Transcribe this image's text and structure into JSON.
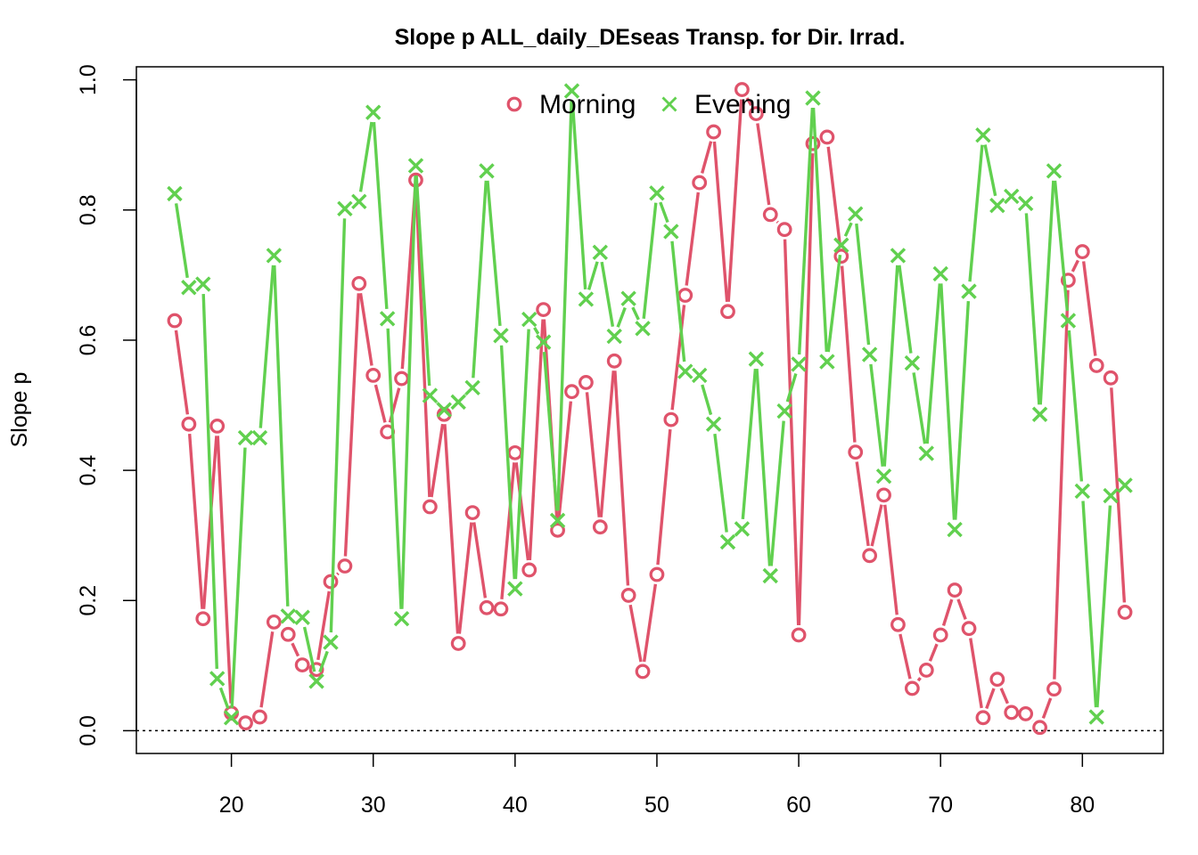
{
  "chart_data": {
    "type": "line",
    "title": "Slope p ALL_daily_DEseas Transp. for Dir. Irrad.",
    "xlabel": "",
    "ylabel": "Slope p",
    "xlim": [
      13.3,
      85.7
    ],
    "ylim": [
      -0.035,
      1.02
    ],
    "xticks": [
      "20",
      "30",
      "40",
      "50",
      "60",
      "70",
      "80"
    ],
    "yticks": [
      "0.0",
      "0.2",
      "0.4",
      "0.6",
      "0.8",
      "1.0"
    ],
    "reference_line": 0,
    "legend_position": "top-center",
    "grid": false,
    "x": [
      16,
      17,
      18,
      19,
      20,
      21,
      22,
      23,
      24,
      25,
      26,
      27,
      28,
      29,
      30,
      31,
      32,
      33,
      34,
      35,
      36,
      37,
      38,
      39,
      40,
      41,
      42,
      43,
      44,
      45,
      46,
      47,
      48,
      49,
      50,
      51,
      52,
      53,
      54,
      55,
      56,
      57,
      58,
      59,
      60,
      61,
      62,
      63,
      64,
      65,
      66,
      67,
      68,
      69,
      70,
      71,
      72,
      73,
      74,
      75,
      76,
      77,
      78,
      79,
      80,
      81,
      82,
      83
    ],
    "series": [
      {
        "name": "Morning",
        "marker": "circle",
        "color": "#DF536B",
        "values": [
          0.63,
          0.471,
          0.172,
          0.468,
          0.027,
          0.012,
          0.021,
          0.167,
          0.148,
          0.101,
          0.094,
          0.229,
          0.253,
          0.687,
          0.546,
          0.459,
          0.541,
          0.846,
          0.344,
          0.486,
          0.134,
          0.335,
          0.189,
          0.187,
          0.427,
          0.247,
          0.647,
          0.308,
          0.521,
          0.535,
          0.313,
          0.568,
          0.208,
          0.091,
          0.24,
          0.478,
          0.669,
          0.842,
          0.92,
          0.644,
          0.985,
          0.948,
          0.793,
          0.77,
          0.147,
          0.902,
          0.912,
          0.729,
          0.428,
          0.269,
          0.362,
          0.163,
          0.065,
          0.093,
          0.147,
          0.216,
          0.157,
          0.02,
          0.079,
          0.028,
          0.026,
          0.005,
          0.064,
          0.692,
          0.736,
          0.561,
          0.542,
          0.182
        ]
      },
      {
        "name": "Evening",
        "marker": "x",
        "color": "#61D04F",
        "values": [
          0.825,
          0.681,
          0.686,
          0.08,
          0.02,
          0.45,
          0.45,
          0.73,
          0.176,
          0.174,
          0.076,
          0.136,
          0.802,
          0.813,
          0.95,
          0.633,
          0.172,
          0.868,
          0.515,
          0.493,
          0.505,
          0.527,
          0.86,
          0.607,
          0.218,
          0.632,
          0.597,
          0.323,
          0.983,
          0.663,
          0.735,
          0.606,
          0.664,
          0.618,
          0.826,
          0.767,
          0.552,
          0.546,
          0.471,
          0.29,
          0.31,
          0.571,
          0.238,
          0.491,
          0.563,
          0.972,
          0.567,
          0.746,
          0.794,
          0.578,
          0.391,
          0.73,
          0.565,
          0.426,
          0.702,
          0.309,
          0.675,
          0.915,
          0.807,
          0.821,
          0.81,
          0.486,
          0.86,
          0.63,
          0.368,
          0.021,
          0.361,
          0.377
        ]
      }
    ]
  }
}
